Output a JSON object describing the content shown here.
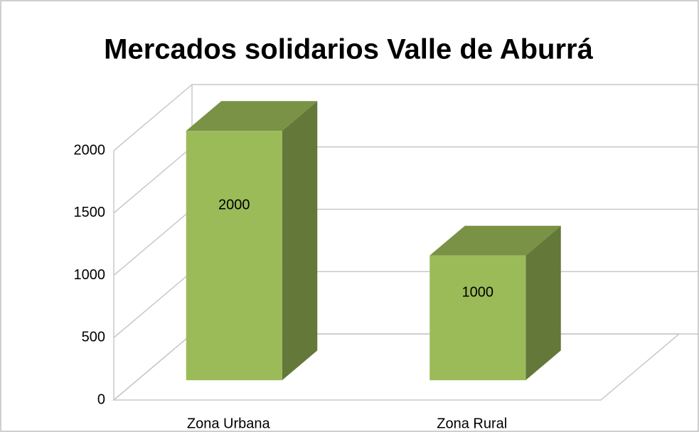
{
  "chart_data": {
    "type": "bar3d",
    "title": "Mercados solidarios Valle de Aburrá",
    "categories": [
      "Zona Urbana",
      "Zona Rural"
    ],
    "values": [
      2000,
      1000
    ],
    "color": "#9bbb59",
    "ylim": [
      0,
      2000
    ],
    "yticks": [
      0,
      500,
      1000,
      1500,
      2000
    ],
    "grid": true
  }
}
